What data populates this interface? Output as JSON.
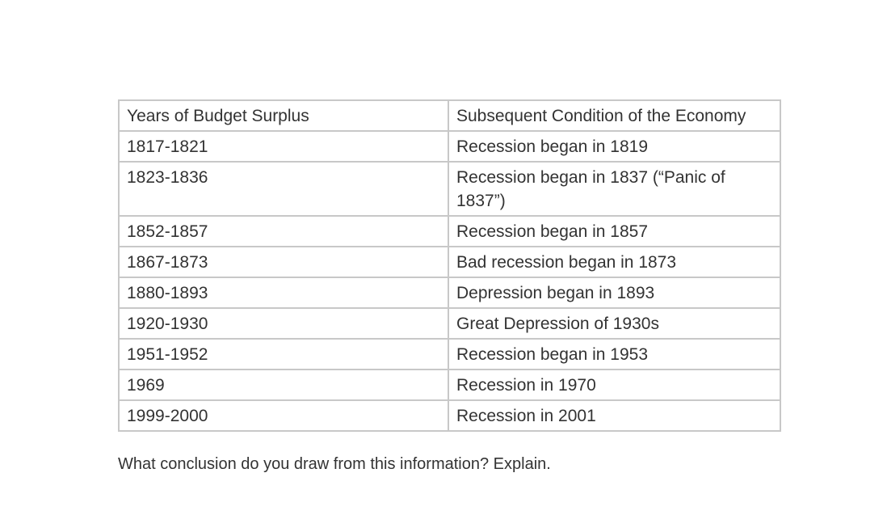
{
  "table": {
    "headers": [
      "Years of Budget Surplus",
      "Subsequent Condition of the Economy"
    ],
    "rows": [
      [
        "1817-1821",
        "Recession began in 1819"
      ],
      [
        "1823-1836",
        "Recession began in 1837 (“Panic of 1837”)"
      ],
      [
        "1852-1857",
        "Recession began in 1857"
      ],
      [
        "1867-1873",
        "Bad recession began in 1873"
      ],
      [
        "1880-1893",
        "Depression began in 1893"
      ],
      [
        "1920-1930",
        "Great Depression of 1930s"
      ],
      [
        "1951-1952",
        "Recession began in 1953"
      ],
      [
        "1969",
        "Recession in 1970"
      ],
      [
        "1999-2000",
        "Recession in 2001"
      ]
    ]
  },
  "question": "What conclusion do you draw from this information? Explain."
}
